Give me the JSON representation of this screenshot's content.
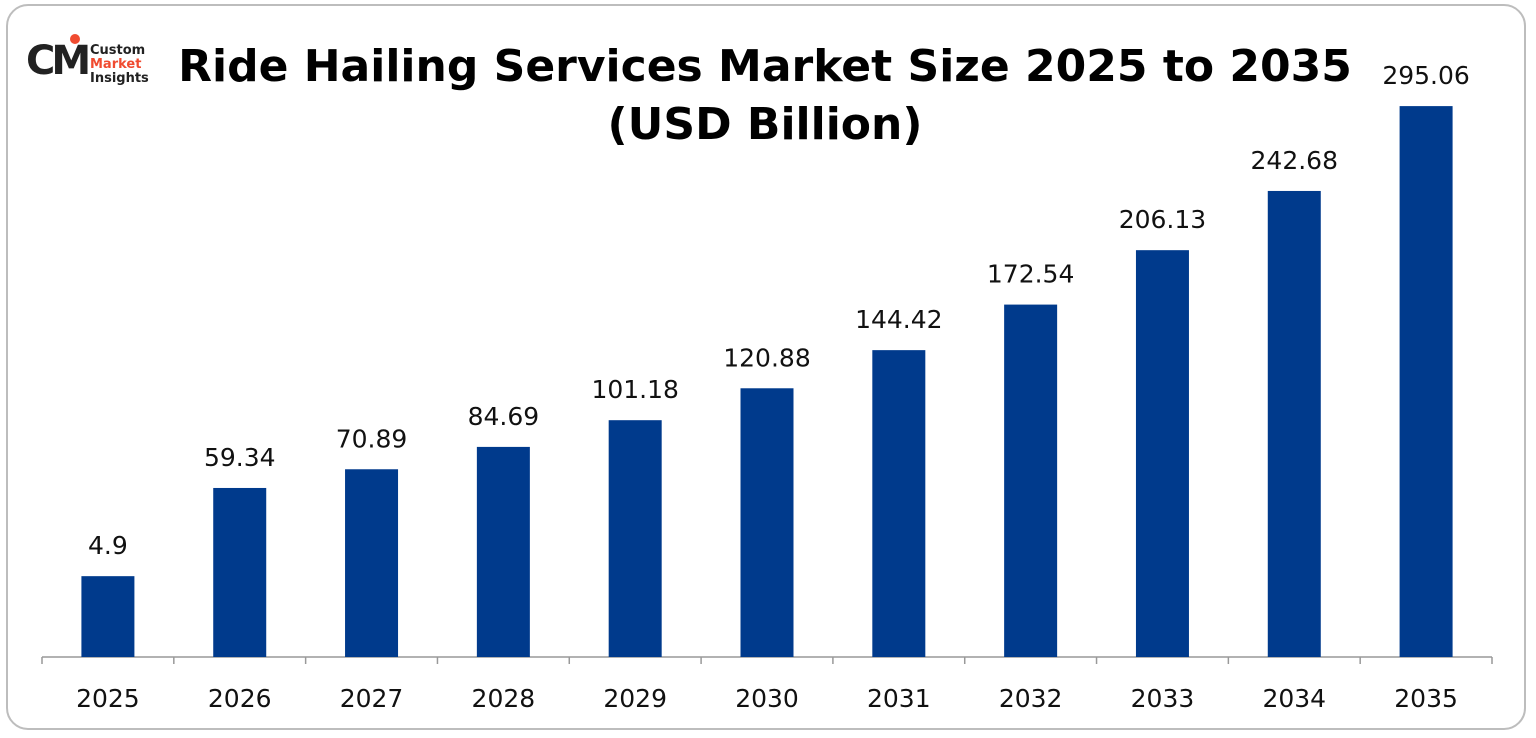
{
  "logo": {
    "line1": "Custom",
    "line2": "Market",
    "line3": "Insights",
    "mark": "CM",
    "accent": "#f04b30"
  },
  "chart_data": {
    "type": "bar",
    "title_line1": "Ride Hailing Services Market Size 2025 to 2035",
    "title_line2": "(USD Billion)",
    "categories": [
      "2025",
      "2026",
      "2027",
      "2028",
      "2029",
      "2030",
      "2031",
      "2032",
      "2033",
      "2034",
      "2035"
    ],
    "values": [
      4.9,
      59.34,
      70.89,
      84.69,
      101.18,
      120.88,
      144.42,
      172.54,
      206.13,
      242.68,
      295.06
    ],
    "labels": [
      "4.9",
      "59.34",
      "70.89",
      "84.69",
      "101.18",
      "120.88",
      "144.42",
      "172.54",
      "206.13",
      "242.68",
      "295.06"
    ],
    "bar_color": "#003a8c",
    "grid": false,
    "legend": "none",
    "y_axis_visible": false
  }
}
